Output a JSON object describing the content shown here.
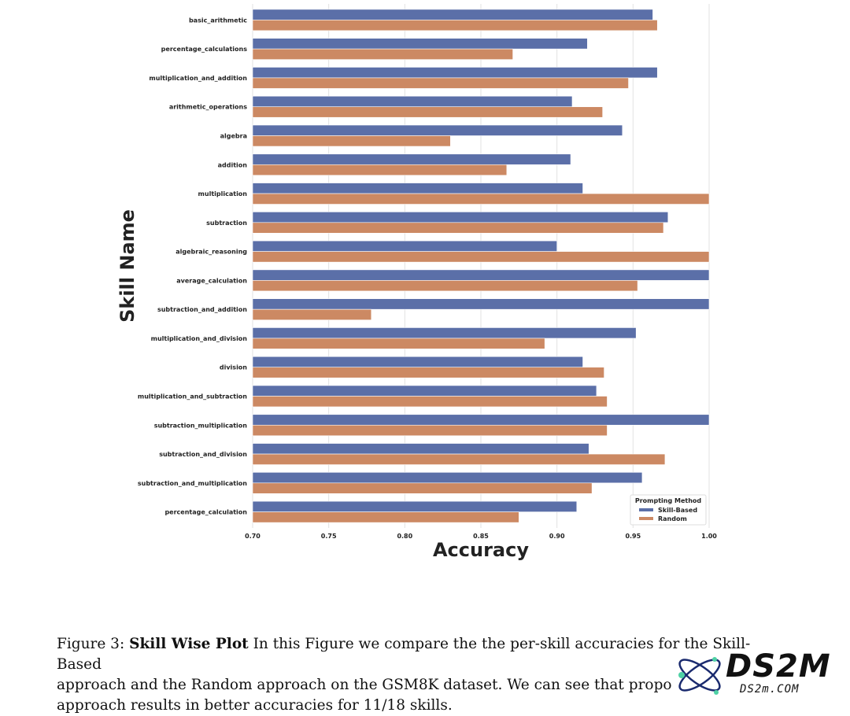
{
  "chart_data": {
    "type": "bar",
    "orientation": "horizontal",
    "ylabel": "Skill Name",
    "xlabel": "Accuracy",
    "xlim": [
      0.7,
      1.0
    ],
    "xticks": [
      "0.70",
      "0.75",
      "0.80",
      "0.85",
      "0.90",
      "0.95",
      "1.00"
    ],
    "grid": "vertical",
    "legend": {
      "title": "Prompting Method",
      "placement": "lower-right"
    },
    "categories": [
      "basic_arithmetic",
      "percentage_calculations",
      "multiplication_and_addition",
      "arithmetic_operations",
      "algebra",
      "addition",
      "multiplication",
      "subtraction",
      "algebraic_reasoning",
      "average_calculation",
      "subtraction_and_addition",
      "multiplication_and_division",
      "division",
      "multiplication_and_subtraction",
      "subtraction_multiplication",
      "subtraction_and_division",
      "subtraction_and_multiplication",
      "percentage_calculation"
    ],
    "series": [
      {
        "name": "Skill-Based",
        "color": "#5b6fa8",
        "values": [
          0.963,
          0.92,
          0.966,
          0.91,
          0.943,
          0.909,
          0.917,
          0.973,
          0.9,
          1.0,
          1.0,
          0.952,
          0.917,
          0.926,
          1.0,
          0.921,
          0.956,
          0.913
        ]
      },
      {
        "name": "Random",
        "color": "#cc8963",
        "values": [
          0.966,
          0.871,
          0.947,
          0.93,
          0.83,
          0.867,
          1.0,
          0.97,
          1.0,
          0.953,
          0.778,
          0.892,
          0.931,
          0.933,
          0.933,
          0.971,
          0.923,
          0.875
        ]
      }
    ]
  },
  "caption": {
    "prefix": "Figure 3: ",
    "bold": "Skill Wise Plot",
    "line1_rest": " In this Figure we compare the the per-skill accuracies for the Skill-Based",
    "line2": "approach and the Random approach on the GSM8K dataset. We can see that propo",
    "line3": "approach results in better accuracies for 11/18 skills."
  },
  "watermark": {
    "logo": "DS2M",
    "site": "DS2m.COM"
  }
}
